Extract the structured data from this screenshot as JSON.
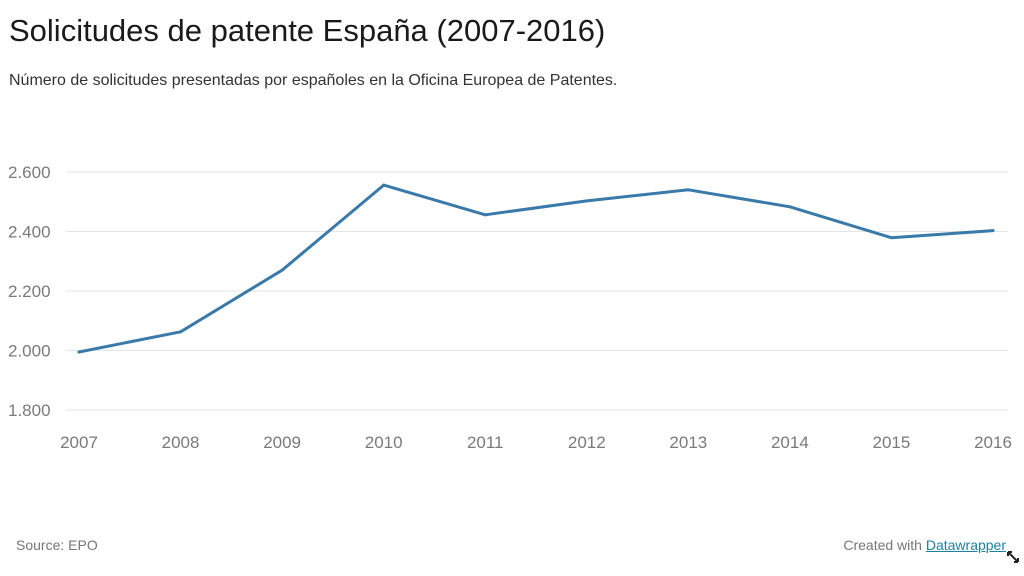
{
  "header": {
    "title": "Solicitudes de patente España (2007-2016)",
    "subtitle": "Número de solicitudes presentadas por españoles en la Oficina Europea de Patentes."
  },
  "footer": {
    "source": "Source: EPO",
    "created_with": "Created with",
    "link_label": "Datawrapper"
  },
  "colors": {
    "line": "#3a7aaa",
    "grid": "#e4e4e4",
    "tick_text": "#7a7a7a"
  },
  "chart_data": {
    "type": "line",
    "title": "Solicitudes de patente España (2007-2016)",
    "subtitle": "Número de solicitudes presentadas por españoles en la Oficina Europea de Patentes.",
    "xlabel": "",
    "ylabel": "",
    "x": [
      2007,
      2008,
      2009,
      2010,
      2011,
      2012,
      2013,
      2014,
      2015,
      2016
    ],
    "x_tick_labels": [
      "2007",
      "2008",
      "2009",
      "2010",
      "2011",
      "2012",
      "2013",
      "2014",
      "2015",
      "2016"
    ],
    "series": [
      {
        "name": "Solicitudes",
        "values": [
          1995,
          2063,
          2270,
          2556,
          2456,
          2503,
          2540,
          2483,
          2379,
          2403
        ]
      }
    ],
    "ylim": [
      1800,
      2600
    ],
    "y_ticks": [
      1800,
      2000,
      2200,
      2400,
      2600
    ],
    "y_tick_labels": [
      "1.800",
      "2.000",
      "2.200",
      "2.400",
      "2.600"
    ],
    "grid": true,
    "legend": "none",
    "source": "Source: EPO"
  }
}
